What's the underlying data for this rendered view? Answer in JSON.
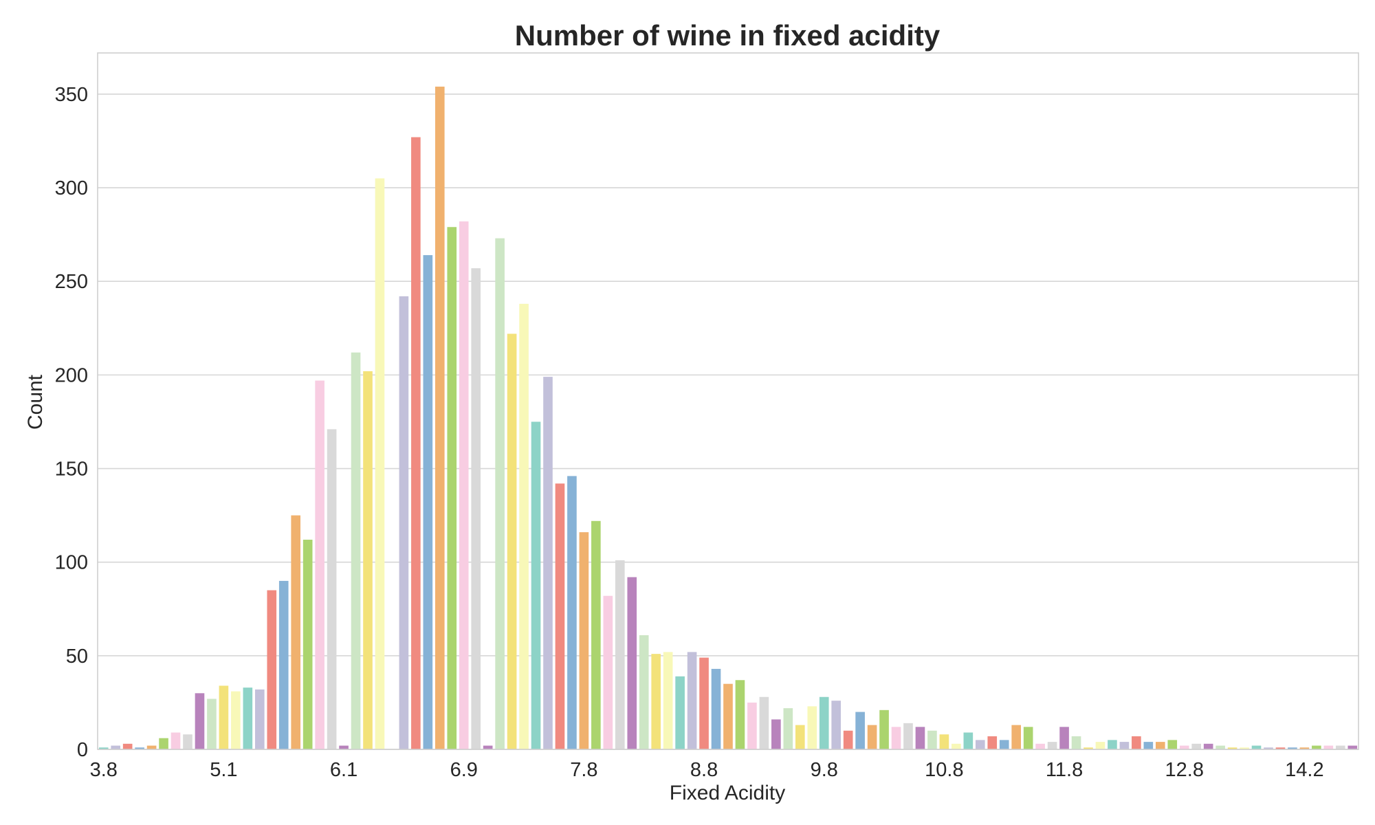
{
  "chart_data": {
    "type": "bar",
    "title": "Number of wine in fixed acidity",
    "xlabel": "Fixed Acidity",
    "ylabel": "Count",
    "ylim": [
      0,
      372
    ],
    "yticks": [
      0,
      50,
      100,
      150,
      200,
      250,
      300,
      350
    ],
    "grid": "horizontal",
    "xtick_labels": [
      {
        "index": 0,
        "label": "3.8"
      },
      {
        "index": 10,
        "label": "5.1"
      },
      {
        "index": 20,
        "label": "6.1"
      },
      {
        "index": 30,
        "label": "6.9"
      },
      {
        "index": 40,
        "label": "7.8"
      },
      {
        "index": 50,
        "label": "8.8"
      },
      {
        "index": 60,
        "label": "9.8"
      },
      {
        "index": 70,
        "label": "10.8"
      },
      {
        "index": 80,
        "label": "11.8"
      },
      {
        "index": 90,
        "label": "12.8"
      },
      {
        "index": 100,
        "label": "14.2"
      }
    ],
    "values": [
      1,
      2,
      3,
      1,
      2,
      6,
      9,
      8,
      30,
      27,
      34,
      31,
      33,
      32,
      85,
      90,
      125,
      112,
      197,
      171,
      2,
      212,
      202,
      305,
      0,
      242,
      327,
      264,
      354,
      279,
      282,
      257,
      2,
      273,
      222,
      238,
      175,
      199,
      142,
      146,
      116,
      122,
      82,
      101,
      92,
      61,
      51,
      52,
      39,
      52,
      49,
      43,
      35,
      37,
      25,
      28,
      16,
      22,
      13,
      23,
      28,
      26,
      10,
      20,
      13,
      21,
      12,
      14,
      12,
      10,
      8,
      3,
      9,
      5,
      7,
      5,
      13,
      12,
      3,
      4,
      12,
      7,
      1,
      4,
      5,
      4,
      7,
      4,
      4,
      5,
      2,
      3,
      3,
      2,
      1,
      1,
      2,
      1,
      1,
      1,
      1,
      2,
      2,
      2,
      2
    ],
    "palette": [
      "#8dd3c7",
      "#c2c0da",
      "#f08a80",
      "#86b2d6",
      "#f0b16e",
      "#abd46e",
      "#f8cde2",
      "#d9d9d9",
      "#b883bc",
      "#cde6c5",
      "#f3e27a",
      "#f8f8b8"
    ]
  }
}
